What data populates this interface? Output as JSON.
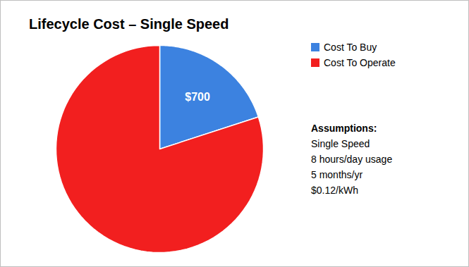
{
  "chart_data": {
    "type": "pie",
    "title": "Lifecycle Cost – Single Speed",
    "categories": [
      "Cost To Buy",
      "Cost To Operate"
    ],
    "values": [
      700,
      2800
    ],
    "value_labels": [
      "$700",
      null
    ],
    "colors": [
      "#3c82e0",
      "#f21f1f"
    ],
    "data_labels": true,
    "legend": "top-right",
    "annotations": [
      "Assumptions:",
      "Single Speed",
      "8 hours/day usage",
      "5 months/yr",
      "$0.12/kWh"
    ]
  }
}
